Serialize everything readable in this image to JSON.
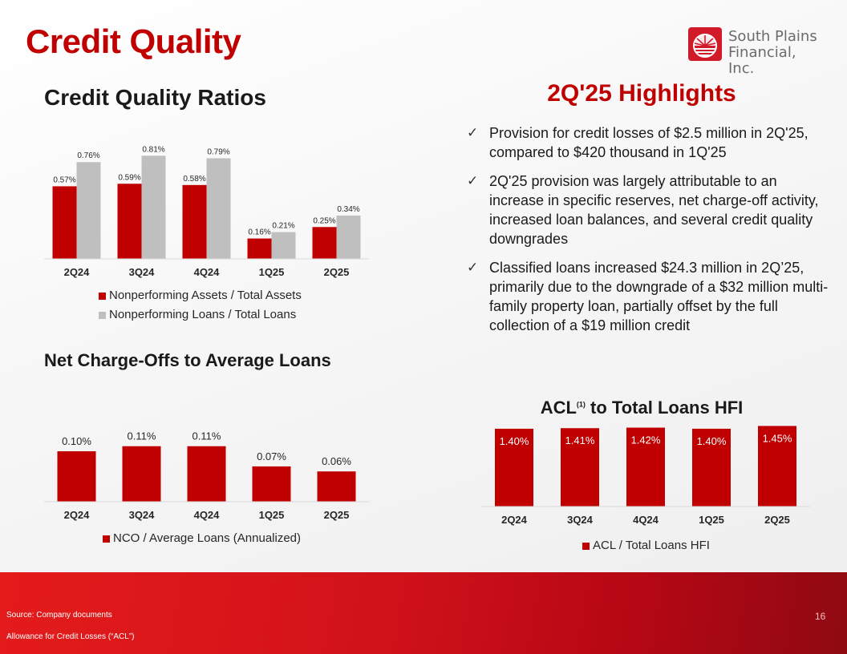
{
  "title": "Credit Quality",
  "logo": {
    "line1": "South Plains",
    "line2": "Financial, Inc."
  },
  "sections": {
    "ratios": "Credit Quality Ratios",
    "nco": "Net Charge-Offs to Average Loans",
    "highlights": "2Q'25 Highlights",
    "acl_prefix": "ACL",
    "acl_sup": "(1)",
    "acl_suffix": " to Total Loans HFI"
  },
  "highlights": [
    "Provision for credit losses of $2.5 million in 2Q'25, compared to $420 thousand in 1Q'25",
    "2Q'25 provision was largely attributable to an increase in specific reserves, net charge-off activity, increased loan balances, and several credit quality downgrades",
    "Classified loans increased $24.3 million in 2Q’25, primarily due to the downgrade of a $32 million multi-family property loan, partially offset by the full collection of a $19 million credit"
  ],
  "check_glyph": "✓",
  "footer": {
    "source": "Source: Company documents",
    "note": "Allowance for Credit Losses (“ACL”)",
    "page": "16"
  },
  "colors": {
    "red": "#c00000",
    "gray": "#bfbfbf",
    "footer_red": "#d1121a"
  },
  "chart_data": [
    {
      "type": "bar",
      "categories": [
        "2Q24",
        "3Q24",
        "4Q24",
        "1Q25",
        "2Q25"
      ],
      "series": [
        {
          "name": "Nonperforming Assets / Total Assets",
          "values": [
            0.57,
            0.59,
            0.58,
            0.16,
            0.25
          ],
          "labels": [
            "0.57%",
            "0.59%",
            "0.58%",
            "0.16%",
            "0.25%"
          ],
          "color": "#c00000"
        },
        {
          "name": "Nonperforming Loans / Total Loans",
          "values": [
            0.76,
            0.81,
            0.79,
            0.21,
            0.34
          ],
          "labels": [
            "0.76%",
            "0.81%",
            "0.79%",
            "0.21%",
            "0.34%"
          ],
          "color": "#bfbfbf"
        }
      ],
      "ylim": [
        0,
        0.9
      ],
      "legend": "bottom"
    },
    {
      "type": "bar",
      "categories": [
        "2Q24",
        "3Q24",
        "4Q24",
        "1Q25",
        "2Q25"
      ],
      "series": [
        {
          "name": "NCO / Average Loans (Annualized)",
          "values": [
            0.1,
            0.11,
            0.11,
            0.07,
            0.06
          ],
          "labels": [
            "0.10%",
            "0.11%",
            "0.11%",
            "0.07%",
            "0.06%"
          ],
          "color": "#c00000"
        }
      ],
      "ylim": [
        0,
        0.135
      ],
      "legend": "bottom"
    },
    {
      "type": "bar",
      "categories": [
        "2Q24",
        "3Q24",
        "4Q24",
        "1Q25",
        "2Q25"
      ],
      "series": [
        {
          "name": "ACL / Total Loans HFI",
          "values": [
            1.4,
            1.41,
            1.42,
            1.4,
            1.45
          ],
          "labels": [
            "1.40%",
            "1.41%",
            "1.42%",
            "1.40%",
            "1.45%"
          ],
          "color": "#c00000"
        }
      ],
      "ylim": [
        0,
        1.5
      ],
      "legend": "bottom",
      "labels_inside": true
    }
  ]
}
